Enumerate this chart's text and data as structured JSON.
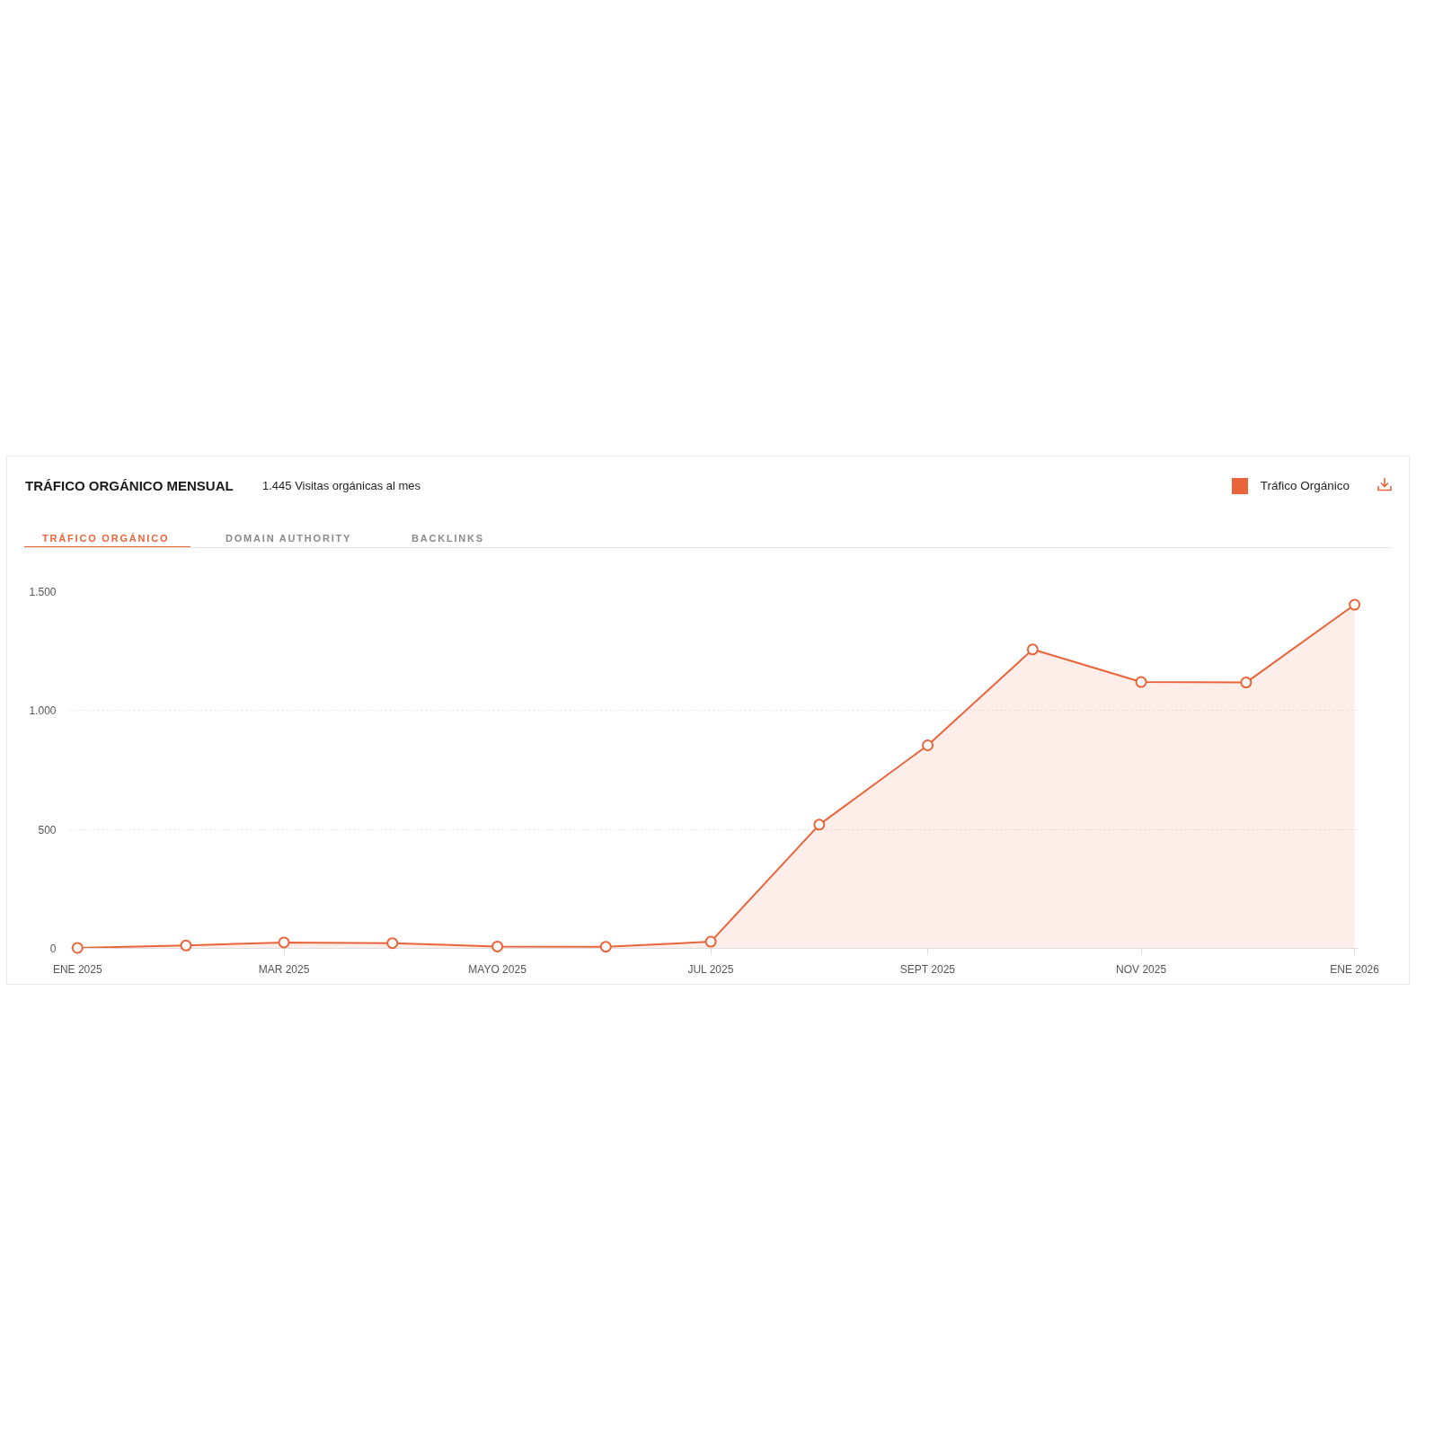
{
  "chart_data": {
    "type": "area",
    "title": "TRÁFICO ORGÁNICO MENSUAL",
    "subtitle": "1.445 Visitas orgánicas al mes",
    "annotations": [
      "TRÁFICO ORGÁNICO",
      "DOMAIN AUTHORITY",
      "BACKLINKS"
    ],
    "x": [
      "2025-01",
      "2025-02",
      "2025-03",
      "2025-04",
      "2025-05",
      "2025-06",
      "2025-07",
      "2025-08",
      "2025-09",
      "2025-10",
      "2025-11",
      "2025-12",
      "2026-01"
    ],
    "series": [
      {
        "name": "Tráfico Orgánico",
        "color": "#e9643a",
        "values": [
          2,
          12,
          25,
          22,
          8,
          7,
          28,
          520,
          854,
          1257,
          1120,
          1118,
          1445
        ]
      }
    ],
    "xlim": [
      "2024-12-30",
      "2026-01-02"
    ],
    "xticks": [
      {
        "value": "2025-01",
        "label": "ENE 2025"
      },
      {
        "value": "2025-03",
        "label": "MAR 2025"
      },
      {
        "value": "2025-05",
        "label": "MAYO 2025"
      },
      {
        "value": "2025-07",
        "label": "JUL 2025"
      },
      {
        "value": "2025-09",
        "label": "SEPT 2025"
      },
      {
        "value": "2025-11",
        "label": "NOV 2025"
      },
      {
        "value": "2026-01",
        "label": "ENE 2026"
      }
    ],
    "ylim": [
      0,
      1500
    ],
    "yticks": [
      0,
      500,
      {
        "value": 1000,
        "label": "1.000"
      },
      {
        "value": 1500,
        "label": "1.500"
      }
    ],
    "grid": "y",
    "legend": "top right",
    "marker": "circle",
    "line_style": "solid"
  }
}
